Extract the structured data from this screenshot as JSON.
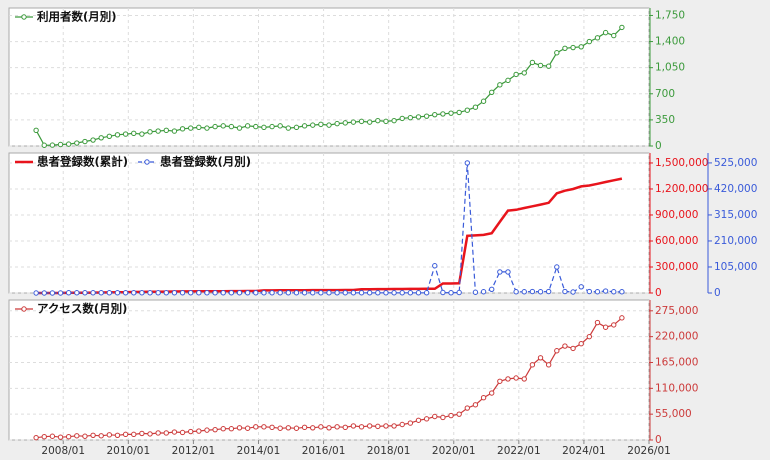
{
  "chart_data": [
    {
      "type": "line",
      "grid": true,
      "legend": "upper left",
      "xlim": [
        "2006/05",
        "2026/01"
      ],
      "x": [
        "2007/03",
        "2007/06",
        "2007/09",
        "2007/12",
        "2008/03",
        "2008/06",
        "2008/09",
        "2008/12",
        "2009/03",
        "2009/06",
        "2009/09",
        "2009/12",
        "2010/03",
        "2010/06",
        "2010/09",
        "2010/12",
        "2011/03",
        "2011/06",
        "2011/09",
        "2011/12",
        "2012/03",
        "2012/06",
        "2012/09",
        "2012/12",
        "2013/03",
        "2013/06",
        "2013/09",
        "2013/12",
        "2014/03",
        "2014/06",
        "2014/09",
        "2014/12",
        "2015/03",
        "2015/06",
        "2015/09",
        "2015/12",
        "2016/03",
        "2016/06",
        "2016/09",
        "2016/12",
        "2017/03",
        "2017/06",
        "2017/09",
        "2017/12",
        "2018/03",
        "2018/06",
        "2018/09",
        "2018/12",
        "2019/03",
        "2019/06",
        "2019/09",
        "2019/12",
        "2020/03",
        "2020/06",
        "2020/09",
        "2020/12",
        "2021/03",
        "2021/06",
        "2021/09",
        "2021/12",
        "2022/03",
        "2022/06",
        "2022/09",
        "2022/12",
        "2023/03",
        "2023/06",
        "2023/09",
        "2023/12",
        "2024/03",
        "2024/06",
        "2024/09",
        "2024/12",
        "2025/03"
      ],
      "ylim": [
        0,
        1850
      ],
      "yticks": [
        0,
        350,
        700,
        {
          "value": 1050,
          "label": "1,050"
        },
        {
          "value": 1400,
          "label": "1,400"
        },
        {
          "value": 1750,
          "label": "1,750"
        }
      ],
      "series": [
        {
          "name": "利用者数(月別)",
          "color": "#3c9a3c",
          "values": [
            210,
            10,
            12,
            20,
            25,
            40,
            60,
            80,
            110,
            130,
            150,
            160,
            170,
            160,
            190,
            200,
            210,
            200,
            230,
            240,
            250,
            240,
            260,
            270,
            260,
            240,
            270,
            260,
            250,
            260,
            270,
            240,
            250,
            270,
            280,
            290,
            280,
            300,
            310,
            320,
            330,
            320,
            340,
            330,
            340,
            370,
            380,
            390,
            400,
            420,
            430,
            440,
            450,
            480,
            520,
            600,
            720,
            820,
            880,
            960,
            980,
            1120,
            1080,
            1070,
            1250,
            1310,
            1320,
            1330,
            1400,
            1450,
            1520,
            1480,
            1590
          ]
        }
      ]
    },
    {
      "type": "line",
      "grid": true,
      "legend": "upper left",
      "xlim": [
        "2006/05",
        "2026/01"
      ],
      "x": [
        "2007/03",
        "2007/06",
        "2007/09",
        "2007/12",
        "2008/03",
        "2008/06",
        "2008/09",
        "2008/12",
        "2009/03",
        "2009/06",
        "2009/09",
        "2009/12",
        "2010/03",
        "2010/06",
        "2010/09",
        "2010/12",
        "2011/03",
        "2011/06",
        "2011/09",
        "2011/12",
        "2012/03",
        "2012/06",
        "2012/09",
        "2012/12",
        "2013/03",
        "2013/06",
        "2013/09",
        "2013/12",
        "2014/03",
        "2014/06",
        "2014/09",
        "2014/12",
        "2015/03",
        "2015/06",
        "2015/09",
        "2015/12",
        "2016/03",
        "2016/06",
        "2016/09",
        "2016/12",
        "2017/03",
        "2017/06",
        "2017/09",
        "2017/12",
        "2018/03",
        "2018/06",
        "2018/09",
        "2018/12",
        "2019/03",
        "2019/06",
        "2019/09",
        "2019/12",
        "2020/03",
        "2020/06",
        "2020/09",
        "2020/12",
        "2021/03",
        "2021/06",
        "2021/09",
        "2021/12",
        "2022/03",
        "2022/06",
        "2022/09",
        "2022/12",
        "2023/03",
        "2023/06",
        "2023/09",
        "2023/12",
        "2024/03",
        "2024/06",
        "2024/09",
        "2024/12",
        "2025/03"
      ],
      "ylim": [
        0,
        1615000
      ],
      "yticks": [
        0,
        {
          "value": 300000,
          "label": "300,000"
        },
        {
          "value": 600000,
          "label": "600,000"
        },
        {
          "value": 900000,
          "label": "900,000"
        },
        {
          "value": 1200000,
          "label": "1,200,000"
        },
        {
          "value": 1500000,
          "label": "1,500,000"
        }
      ],
      "y2lim": [
        0,
        565000
      ],
      "y2ticks": [
        0,
        {
          "value": 105000,
          "label": "105,000"
        },
        {
          "value": 210000,
          "label": "210,000"
        },
        {
          "value": 315000,
          "label": "315,000"
        },
        {
          "value": 420000,
          "label": "420,000"
        },
        {
          "value": 525000,
          "label": "525,000"
        }
      ],
      "series": [
        {
          "name": "患者登録数(累計)",
          "color": "#e8141c",
          "markers": false,
          "values": [
            0,
            0,
            0,
            0,
            2000,
            3000,
            4000,
            5000,
            6000,
            7000,
            8000,
            9000,
            12000,
            13000,
            14000,
            15000,
            16000,
            17000,
            18000,
            19000,
            20000,
            20000,
            21000,
            21000,
            22000,
            22000,
            23000,
            23000,
            30000,
            30000,
            31000,
            31000,
            32000,
            32000,
            33000,
            33000,
            34000,
            34000,
            35000,
            35000,
            44000,
            44000,
            45000,
            45000,
            46000,
            46000,
            47000,
            47000,
            48000,
            48000,
            110000,
            110000,
            112000,
            660000,
            665000,
            670000,
            690000,
            820000,
            950000,
            960000,
            980000,
            1000000,
            1020000,
            1040000,
            1150000,
            1180000,
            1200000,
            1230000,
            1240000,
            1260000,
            1280000,
            1300000,
            1320000
          ]
        },
        {
          "name": "患者登録数(月別)",
          "color": "#3a5bd9",
          "axis": "y2",
          "dash": true,
          "values": [
            0,
            0,
            0,
            0,
            1000,
            1000,
            1000,
            1000,
            1000,
            1000,
            1000,
            1000,
            1000,
            1000,
            1000,
            1000,
            1000,
            1000,
            1000,
            1000,
            1000,
            1000,
            1000,
            1000,
            1000,
            1000,
            1000,
            1000,
            1000,
            1000,
            1000,
            1000,
            1000,
            1000,
            1000,
            1000,
            1000,
            1000,
            1000,
            1000,
            1000,
            1000,
            1000,
            1000,
            1000,
            1000,
            1000,
            1000,
            1000,
            110000,
            2000,
            1000,
            2000,
            525000,
            3000,
            5000,
            15000,
            85000,
            85000,
            5000,
            5000,
            6000,
            5000,
            6000,
            105000,
            6000,
            4000,
            25000,
            6000,
            5000,
            8000,
            5000,
            5000
          ]
        }
      ]
    },
    {
      "type": "line",
      "grid": true,
      "legend": "upper left",
      "xlim": [
        "2006/05",
        "2026/01"
      ],
      "xticks": [
        "2008/01",
        "2010/01",
        "2012/01",
        "2014/01",
        "2016/01",
        "2018/01",
        "2020/01",
        "2022/01",
        "2024/01",
        "2026/01"
      ],
      "x": [
        "2007/03",
        "2007/06",
        "2007/09",
        "2007/12",
        "2008/03",
        "2008/06",
        "2008/09",
        "2008/12",
        "2009/03",
        "2009/06",
        "2009/09",
        "2009/12",
        "2010/03",
        "2010/06",
        "2010/09",
        "2010/12",
        "2011/03",
        "2011/06",
        "2011/09",
        "2011/12",
        "2012/03",
        "2012/06",
        "2012/09",
        "2012/12",
        "2013/03",
        "2013/06",
        "2013/09",
        "2013/12",
        "2014/03",
        "2014/06",
        "2014/09",
        "2014/12",
        "2015/03",
        "2015/06",
        "2015/09",
        "2015/12",
        "2016/03",
        "2016/06",
        "2016/09",
        "2016/12",
        "2017/03",
        "2017/06",
        "2017/09",
        "2017/12",
        "2018/03",
        "2018/06",
        "2018/09",
        "2018/12",
        "2019/03",
        "2019/06",
        "2019/09",
        "2019/12",
        "2020/03",
        "2020/06",
        "2020/09",
        "2020/12",
        "2021/03",
        "2021/06",
        "2021/09",
        "2021/12",
        "2022/03",
        "2022/06",
        "2022/09",
        "2022/12",
        "2023/03",
        "2023/06",
        "2023/09",
        "2023/12",
        "2024/03",
        "2024/06",
        "2024/09",
        "2024/12",
        "2025/03"
      ],
      "ylim": [
        0,
        298000
      ],
      "yticks": [
        0,
        {
          "value": 55000,
          "label": "55,000"
        },
        {
          "value": 110000,
          "label": "110,000"
        },
        {
          "value": 165000,
          "label": "165,000"
        },
        {
          "value": 220000,
          "label": "220,000"
        },
        {
          "value": 275000,
          "label": "275,000"
        }
      ],
      "series": [
        {
          "name": "アクセス数(月別)",
          "color": "#cc3b3b",
          "values": [
            5000,
            7000,
            8000,
            6000,
            7000,
            9000,
            8000,
            10000,
            9000,
            11000,
            10000,
            12000,
            12000,
            14000,
            13000,
            15000,
            15000,
            17000,
            16000,
            18000,
            19000,
            21000,
            22000,
            24000,
            24000,
            26000,
            25000,
            28000,
            28000,
            27000,
            25000,
            26000,
            25000,
            27000,
            26000,
            28000,
            26000,
            28000,
            27000,
            30000,
            28000,
            30000,
            29000,
            30000,
            30000,
            33000,
            36000,
            42000,
            45000,
            50000,
            48000,
            52000,
            55000,
            68000,
            75000,
            90000,
            100000,
            125000,
            130000,
            132000,
            130000,
            160000,
            175000,
            160000,
            190000,
            200000,
            195000,
            205000,
            220000,
            250000,
            240000,
            245000,
            260000
          ]
        }
      ]
    }
  ]
}
